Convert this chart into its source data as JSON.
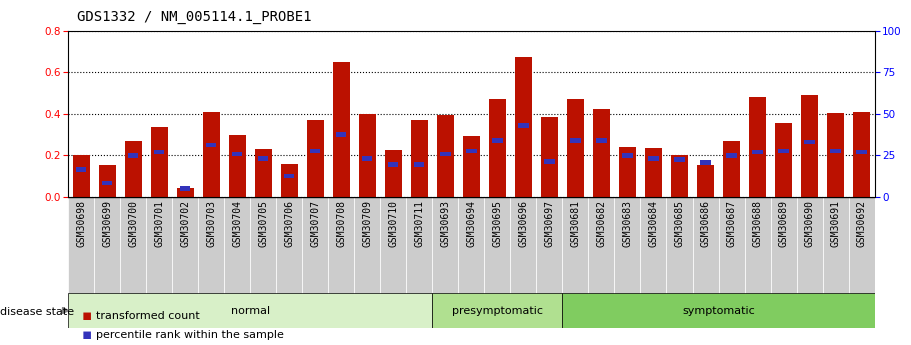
{
  "title": "GDS1332 / NM_005114.1_PROBE1",
  "samples": [
    "GSM30698",
    "GSM30699",
    "GSM30700",
    "GSM30701",
    "GSM30702",
    "GSM30703",
    "GSM30704",
    "GSM30705",
    "GSM30706",
    "GSM30707",
    "GSM30708",
    "GSM30709",
    "GSM30710",
    "GSM30711",
    "GSM30693",
    "GSM30694",
    "GSM30695",
    "GSM30696",
    "GSM30697",
    "GSM30681",
    "GSM30682",
    "GSM30683",
    "GSM30684",
    "GSM30685",
    "GSM30686",
    "GSM30687",
    "GSM30688",
    "GSM30689",
    "GSM30690",
    "GSM30691",
    "GSM30692"
  ],
  "red_values": [
    0.2,
    0.155,
    0.27,
    0.335,
    0.04,
    0.41,
    0.3,
    0.23,
    0.16,
    0.37,
    0.65,
    0.4,
    0.225,
    0.37,
    0.395,
    0.295,
    0.47,
    0.675,
    0.385,
    0.47,
    0.425,
    0.24,
    0.235,
    0.2,
    0.155,
    0.27,
    0.48,
    0.355,
    0.49,
    0.405,
    0.41
  ],
  "blue_values": [
    0.13,
    0.065,
    0.2,
    0.215,
    0.04,
    0.25,
    0.205,
    0.185,
    0.1,
    0.22,
    0.3,
    0.185,
    0.155,
    0.155,
    0.205,
    0.22,
    0.27,
    0.345,
    0.17,
    0.27,
    0.27,
    0.2,
    0.185,
    0.18,
    0.165,
    0.2,
    0.215,
    0.22,
    0.265,
    0.22,
    0.215
  ],
  "groups": [
    {
      "label": "normal",
      "start": 0,
      "end": 14,
      "color": "#d8f0c8"
    },
    {
      "label": "presymptomatic",
      "start": 14,
      "end": 19,
      "color": "#b0e090"
    },
    {
      "label": "symptomatic",
      "start": 19,
      "end": 31,
      "color": "#80cc60"
    }
  ],
  "disease_state_label": "disease state",
  "ylim_left": [
    0,
    0.8
  ],
  "ylim_right": [
    0,
    100
  ],
  "yticks_left": [
    0,
    0.2,
    0.4,
    0.6,
    0.8
  ],
  "yticks_right": [
    0,
    25,
    50,
    75,
    100
  ],
  "bar_color": "#bb1100",
  "blue_color": "#3333bb",
  "bg_color": "#ffffff",
  "ticklabel_bg": "#cccccc",
  "grid_color": "#000000",
  "title_fontsize": 10,
  "tick_fontsize": 7,
  "bar_width": 0.65
}
